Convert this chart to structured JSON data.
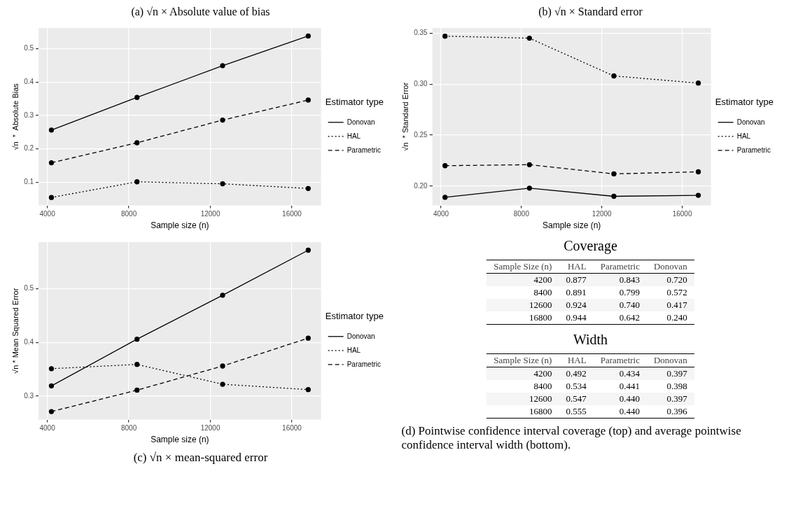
{
  "chart_data": [
    {
      "type": "line",
      "title": "(a) √n × Absolute value of bias",
      "xlabel": "Sample size (n)",
      "ylabel": "√n  *  Absolute Bias",
      "legend_title": "Estimator type",
      "legend": "right",
      "grid": true,
      "marker": "circle",
      "x": [
        4200,
        8400,
        12600,
        16800
      ],
      "xlim": [
        3570,
        17430
      ],
      "xticks": [
        4000,
        8000,
        12000,
        16000
      ],
      "ylim": [
        0.03,
        0.562
      ],
      "yticks": [
        0.1,
        0.2,
        0.3,
        0.4,
        0.5
      ],
      "series": [
        {
          "name": "Donovan",
          "color": "#000000",
          "line_style": "solid",
          "values": [
            0.256,
            0.354,
            0.449,
            0.538
          ]
        },
        {
          "name": "HAL",
          "color": "#000000",
          "line_style": "dotted",
          "values": [
            0.054,
            0.101,
            0.095,
            0.081
          ]
        },
        {
          "name": "Parametric",
          "color": "#000000",
          "line_style": "dashed",
          "values": [
            0.158,
            0.218,
            0.286,
            0.346
          ]
        }
      ]
    },
    {
      "type": "line",
      "title": "(b) √n × Standard error",
      "xlabel": "Sample size (n)",
      "ylabel": "√n  * Standard Error",
      "legend_title": "Estimator type",
      "legend": "right",
      "grid": true,
      "marker": "circle",
      "x": [
        4200,
        8400,
        12600,
        16800
      ],
      "xlim": [
        3570,
        17430
      ],
      "xticks": [
        4000,
        8000,
        12000,
        16000
      ],
      "ylim": [
        0.181,
        0.355
      ],
      "yticks": [
        {
          "value": 0.2,
          "label": "0.20"
        },
        {
          "value": 0.25,
          "label": "0.25"
        },
        {
          "value": 0.3,
          "label": "0.30"
        },
        {
          "value": 0.35,
          "label": "0.35"
        }
      ],
      "series": [
        {
          "name": "Donovan",
          "color": "#000000",
          "line_style": "solid",
          "values": [
            0.189,
            0.198,
            0.19,
            0.191
          ]
        },
        {
          "name": "HAL",
          "color": "#000000",
          "line_style": "dotted",
          "values": [
            0.347,
            0.345,
            0.308,
            0.301
          ]
        },
        {
          "name": "Parametric",
          "color": "#000000",
          "line_style": "dashed",
          "values": [
            0.22,
            0.221,
            0.212,
            0.214
          ]
        }
      ]
    },
    {
      "type": "line",
      "annotations": [
        "(c) √n × mean-squared error"
      ],
      "xlabel": "Sample size (n)",
      "ylabel": "√n * Mean Squared Error",
      "legend_title": "Estimator type",
      "legend": "right",
      "grid": true,
      "marker": "circle",
      "x": [
        4200,
        8400,
        12600,
        16800
      ],
      "xlim": [
        3570,
        17430
      ],
      "xticks": [
        4000,
        8000,
        12000,
        16000
      ],
      "ylim": [
        0.256,
        0.587
      ],
      "yticks": [
        0.3,
        0.4,
        0.5
      ],
      "series": [
        {
          "name": "Donovan",
          "color": "#000000",
          "line_style": "solid",
          "values": [
            0.319,
            0.406,
            0.488,
            0.572
          ]
        },
        {
          "name": "HAL",
          "color": "#000000",
          "line_style": "dotted",
          "values": [
            0.351,
            0.359,
            0.322,
            0.312
          ]
        },
        {
          "name": "Parametric",
          "color": "#000000",
          "line_style": "dashed",
          "values": [
            0.271,
            0.311,
            0.356,
            0.408
          ]
        }
      ]
    },
    {
      "type": "heatmap",
      "data_labels": true,
      "title": "Coverage",
      "ylabel": "Sample Size (n)",
      "categories": [
        "HAL",
        "Parametric",
        "Donovan"
      ],
      "y_categories": [
        "4200",
        "8400",
        "12600",
        "16800"
      ],
      "cells": [
        [
          0.877,
          0.843,
          0.72
        ],
        [
          0.891,
          0.799,
          0.572
        ],
        [
          0.924,
          0.74,
          0.417
        ],
        [
          0.944,
          0.642,
          0.24
        ]
      ],
      "cell_labels": [
        [
          "0.877",
          "0.843",
          "0.720"
        ],
        [
          "0.891",
          "0.799",
          "0.572"
        ],
        [
          "0.924",
          "0.740",
          "0.417"
        ],
        [
          "0.944",
          "0.642",
          "0.240"
        ]
      ]
    },
    {
      "type": "heatmap",
      "data_labels": true,
      "title": "Width",
      "ylabel": "Sample Size (n)",
      "categories": [
        "HAL",
        "Parametric",
        "Donovan"
      ],
      "y_categories": [
        "4200",
        "8400",
        "12600",
        "16800"
      ],
      "cells": [
        [
          0.492,
          0.434,
          0.397
        ],
        [
          0.534,
          0.441,
          0.398
        ],
        [
          0.547,
          0.44,
          0.397
        ],
        [
          0.555,
          0.44,
          0.396
        ]
      ],
      "cell_labels": [
        [
          "0.492",
          "0.434",
          "0.397"
        ],
        [
          "0.534",
          "0.441",
          "0.398"
        ],
        [
          "0.547",
          "0.440",
          "0.397"
        ],
        [
          "0.555",
          "0.440",
          "0.396"
        ]
      ],
      "annotations": [
        "(d) Pointwise confidence interval coverage (top) and average pointwise confidence interval width (bottom)."
      ]
    }
  ]
}
